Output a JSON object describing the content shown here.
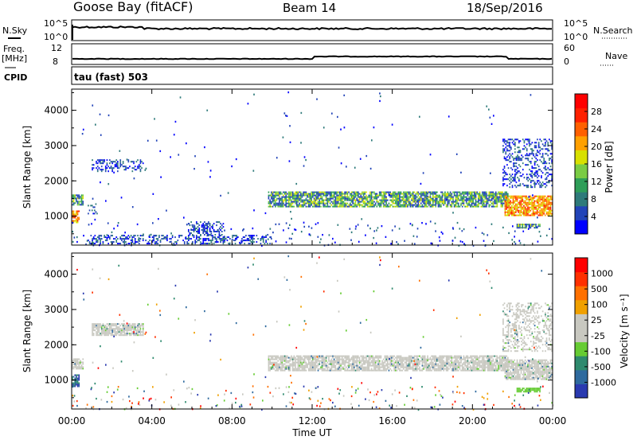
{
  "header": {
    "station": "Goose Bay (fitACF)",
    "beam": "Beam 14",
    "date": "18/Sep/2016"
  },
  "top_panels": {
    "nsky_label": "N.Sky",
    "nsky_ticks": [
      "10^5",
      "10^0"
    ],
    "nsearch_label": "N.Search",
    "nsearch_ticks": [
      "10^5",
      "10^0"
    ],
    "freq_label": "Freq.",
    "freq_unit": "[MHz]",
    "freq_ticks": [
      "12",
      "8"
    ],
    "nave_label": "Nave",
    "nave_ticks": [
      "60",
      "0"
    ],
    "cpid_label": "CPID",
    "cpid_text": "tau (fast) 503"
  },
  "chart_data": [
    {
      "type": "heatmap",
      "panel": "power",
      "ylabel": "Slant Range [km]",
      "yticks": [
        "4000",
        "3000",
        "2000",
        "1000"
      ],
      "ytick_values": [
        4000,
        3000,
        2000,
        1000
      ],
      "ylim": [
        180,
        4600
      ],
      "xlim_hours": [
        0,
        24
      ],
      "colorbar_label": "Power [dB]",
      "colorbar_ticks": [
        "28",
        "24",
        "20",
        "16",
        "12",
        "8",
        "4"
      ],
      "colorbar_colors": [
        "#0000ff",
        "#2244b8",
        "#2e7a7a",
        "#2e9e58",
        "#7acc44",
        "#d8e000",
        "#ffa000",
        "#ff6000",
        "#ff2000",
        "#ff0000"
      ],
      "regions": [
        {
          "t0": 0.0,
          "t1": 0.6,
          "r0": 1300,
          "r1": 1600,
          "level": "mid"
        },
        {
          "t0": 0.0,
          "t1": 0.4,
          "r0": 800,
          "r1": 1150,
          "level": "high"
        },
        {
          "t0": 0.8,
          "t1": 1.3,
          "r0": 1050,
          "r1": 1350,
          "level": "low"
        },
        {
          "t0": 1.0,
          "t1": 3.6,
          "r0": 2250,
          "r1": 2600,
          "level": "low"
        },
        {
          "t0": 9.8,
          "t1": 21.8,
          "r0": 1250,
          "r1": 1700,
          "level": "mid"
        },
        {
          "t0": 21.6,
          "t1": 24.0,
          "r0": 1000,
          "r1": 1600,
          "level": "high"
        },
        {
          "t0": 22.2,
          "t1": 23.4,
          "r0": 650,
          "r1": 800,
          "level": "mid"
        },
        {
          "t0": 0.8,
          "t1": 10.0,
          "r0": 200,
          "r1": 450,
          "level": "low"
        },
        {
          "t0": 5.8,
          "t1": 7.6,
          "r0": 450,
          "r1": 850,
          "level": "low"
        },
        {
          "t0": 21.5,
          "t1": 24.0,
          "r0": 1800,
          "r1": 3200,
          "level": "low"
        }
      ]
    },
    {
      "type": "heatmap",
      "panel": "velocity",
      "ylabel": "Slant Range [km]",
      "yticks": [
        "4000",
        "3000",
        "2000",
        "1000"
      ],
      "ytick_values": [
        4000,
        3000,
        2000,
        1000
      ],
      "ylim": [
        180,
        4600
      ],
      "xlim_hours": [
        0,
        24
      ],
      "xticks": [
        "00:00",
        "04:00",
        "08:00",
        "12:00",
        "16:00",
        "20:00",
        "00:00"
      ],
      "xlabel": "Time UT",
      "colorbar_label": "Velocity [m s⁻¹]",
      "colorbar_ticks": [
        "1000",
        "500",
        "100",
        "25",
        "-25",
        "-100",
        "-500",
        "-1000"
      ],
      "colorbar_colors": [
        "#2a3ab0",
        "#2e6a9e",
        "#2e8a6e",
        "#66cc33",
        "#c8c8c0",
        "#c8c8c0",
        "#f0a000",
        "#ff7000",
        "#ff3000",
        "#ff0000"
      ],
      "regions": [
        {
          "t0": 0.0,
          "t1": 0.6,
          "r0": 1300,
          "r1": 1600,
          "level": "ground"
        },
        {
          "t0": 0.0,
          "t1": 0.4,
          "r0": 800,
          "r1": 1150,
          "level": "pos"
        },
        {
          "t0": 1.0,
          "t1": 3.6,
          "r0": 2250,
          "r1": 2600,
          "level": "ground"
        },
        {
          "t0": 9.8,
          "t1": 21.8,
          "r0": 1250,
          "r1": 1700,
          "level": "ground"
        },
        {
          "t0": 21.6,
          "t1": 24.0,
          "r0": 1000,
          "r1": 1600,
          "level": "ground"
        },
        {
          "t0": 22.2,
          "t1": 23.4,
          "r0": 650,
          "r1": 800,
          "level": "green"
        },
        {
          "t0": 21.5,
          "t1": 24.0,
          "r0": 1800,
          "r1": 3200,
          "level": "ground"
        }
      ]
    }
  ]
}
